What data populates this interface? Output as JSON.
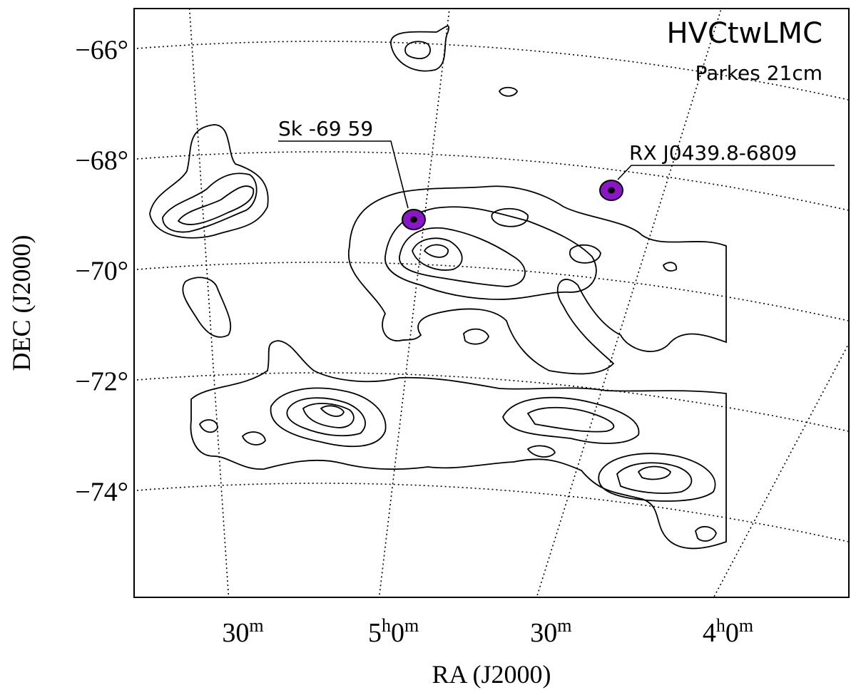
{
  "chart_data": {
    "type": "contour",
    "title": "HVCtwLMC",
    "subtitle": "Parkes 21cm",
    "x_label": "RA (J2000)",
    "y_label": "DEC (J2000)",
    "xlim": [
      5.75,
      3.75
    ],
    "ylim": [
      -75.9,
      -65.2
    ],
    "xticks": [
      {
        "value": 5.5,
        "label": "30m"
      },
      {
        "value": 5,
        "label": "5h0m"
      },
      {
        "value": 4.5,
        "label": "30m"
      },
      {
        "value": 4,
        "label": "4h0m"
      }
    ],
    "yticks": [
      {
        "value": -66,
        "label": "−66°"
      },
      {
        "value": -68,
        "label": "−68°"
      },
      {
        "value": -70,
        "label": "−70°"
      },
      {
        "value": -72,
        "label": "−72°"
      },
      {
        "value": -74,
        "label": "−74°"
      }
    ],
    "grid": true,
    "annotations": [
      {
        "label": "Sk -69 59",
        "color": "#8b16c8"
      },
      {
        "label": "RX J0439.8-6809",
        "color": "#8b16c8"
      }
    ]
  }
}
